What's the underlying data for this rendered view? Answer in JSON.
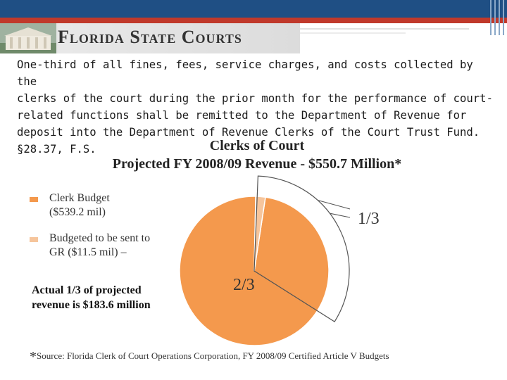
{
  "header": {
    "banner_title": "Florida State Courts"
  },
  "body_text": "One-third of all fines, fees, service charges, and costs collected by the\nclerks of the court during the prior month for the performance of court-\nrelated functions shall be remitted to the Department of Revenue for\ndeposit into the Department of Revenue Clerks of the Court Trust Fund.\n§28.37, F.S.",
  "chart_data": {
    "type": "pie",
    "title": "Clerks of Court",
    "subtitle": "Projected FY 2008/09 Revenue - $550.7 Million*",
    "slices": [
      {
        "label": "Clerk Budget ($539.2 mil)",
        "value": 539.2,
        "color": "#f4994d"
      },
      {
        "label": "Budgeted to be sent to GR ($11.5 mil) –",
        "value": 11.5,
        "color": "#f6c59c"
      }
    ],
    "annotations": [
      "1/3",
      "2/3"
    ],
    "note": "Actual 1/3 of projected revenue is $183.6 million",
    "source": "Source: Florida Clerk of Court Operations Corporation, FY 2008/09 Certified Article V Budgets"
  },
  "legend": {
    "item1_line1": "Clerk Budget",
    "item1_line2": "($539.2 mil)",
    "item2_line1": "Budgeted to be sent to",
    "item2_line2": "GR ($11.5 mil) –",
    "note_line1": "Actual 1/3 of projected",
    "note_line2": "revenue is $183.6 million"
  },
  "source": {
    "asterisk": "*",
    "text": "Source: Florida Clerk of Court Operations Corporation, FY 2008/09 Certified Article V Budgets"
  },
  "colors": {
    "header_blue": "#1f4f84",
    "header_red": "#c0392b",
    "slice_main": "#f4994d",
    "slice_small": "#f6c59c"
  }
}
